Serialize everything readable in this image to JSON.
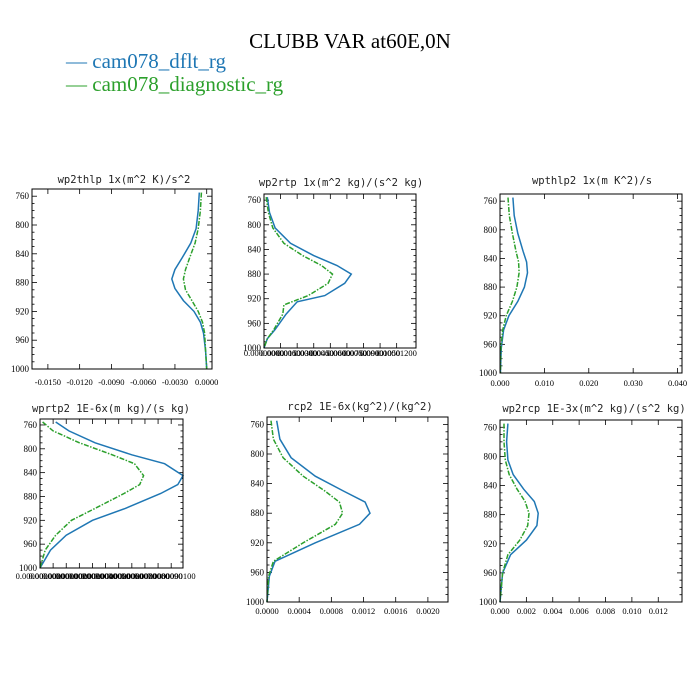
{
  "title": "CLUBB VAR at60E,0N",
  "legend": [
    {
      "label": "— cam078_dflt_rg",
      "color": "#1f77b4"
    },
    {
      "label": "— cam078_diagnostic_rg",
      "color": "#2ca02c"
    }
  ],
  "chart_data": [
    {
      "type": "line",
      "title": "wp2thlp   1x(m^2 K)/s^2",
      "ylim": [
        1000,
        750
      ],
      "y_ticks": [
        760,
        800,
        840,
        880,
        920,
        960,
        1000
      ],
      "y_tick_labels": [
        "760",
        "800",
        "840",
        "880",
        "920",
        "960",
        "1000"
      ],
      "xlim": [
        -0.0165,
        0.0005
      ],
      "x_ticks": [
        -0.015,
        -0.012,
        -0.009,
        -0.006,
        -0.003,
        0.0
      ],
      "x_tick_labels": [
        "-0.0150",
        "-0.0120",
        "-0.0090",
        "-0.0060",
        "-0.0030",
        "0.0000"
      ],
      "series": [
        {
          "name": "cam078_dflt_rg",
          "color": "#1f77b4",
          "dashed": false,
          "x": [
            -0.0007,
            -0.0008,
            -0.001,
            -0.0015,
            -0.0023,
            -0.003,
            -0.0033,
            -0.003,
            -0.0022,
            -0.0012,
            -0.0006,
            -0.0003,
            -0.0001,
            0.0
          ],
          "y": [
            755,
            780,
            805,
            825,
            845,
            862,
            875,
            888,
            905,
            920,
            935,
            950,
            975,
            1000
          ]
        },
        {
          "name": "cam078_diagnostic_rg",
          "color": "#2ca02c",
          "dashed": true,
          "x": [
            -0.0005,
            -0.0006,
            -0.0008,
            -0.0011,
            -0.0016,
            -0.002,
            -0.0022,
            -0.002,
            -0.0014,
            -0.0008,
            -0.0004,
            -0.0002,
            -0.0001,
            0.0
          ],
          "y": [
            755,
            780,
            805,
            825,
            845,
            862,
            875,
            890,
            905,
            920,
            935,
            950,
            975,
            1000
          ]
        }
      ]
    },
    {
      "type": "line",
      "title": "wp2rtp   1x(m^2 kg)/(s^2 kg)",
      "ylim": [
        1000,
        750
      ],
      "y_ticks": [
        760,
        800,
        840,
        880,
        920,
        960,
        1000
      ],
      "y_tick_labels": [
        "760",
        "800",
        "840",
        "880",
        "920",
        "960",
        "1000"
      ],
      "xlim": [
        0.0,
        1.375e-05
      ],
      "x_ticks": [
        0.0,
        1.5e-06,
        3e-06,
        4.5e-06,
        6e-06,
        7.5e-06,
        9e-06,
        1.05e-05,
        1.2e-05
      ],
      "x_tick_labels": [
        "0.00000000",
        "0.00000150",
        "0.00000300",
        "0.00000450",
        "0.00000600",
        "0.00000750",
        "0.00000900",
        "0.00001050",
        "0.00001200"
      ],
      "series": [
        {
          "name": "cam078_dflt_rg",
          "color": "#1f77b4",
          "dashed": false,
          "x": [
            3e-07,
            5e-07,
            1e-06,
            2.4e-06,
            4.5e-06,
            6.6e-06,
            7.9e-06,
            7.3e-06,
            5.5e-06,
            3e-06,
            2e-06,
            1e-06,
            3e-07,
            0.0
          ],
          "y": [
            755,
            780,
            805,
            830,
            850,
            866,
            880,
            895,
            915,
            925,
            945,
            970,
            985,
            1000
          ]
        },
        {
          "name": "cam078_diagnostic_rg",
          "color": "#2ca02c",
          "dashed": true,
          "x": [
            2e-07,
            4e-07,
            8e-07,
            1.8e-06,
            3.5e-06,
            5.2e-06,
            6.2e-06,
            5.8e-06,
            4e-06,
            1.8e-06,
            1.7e-06,
            9e-07,
            3e-07,
            0.0
          ],
          "y": [
            755,
            780,
            805,
            830,
            850,
            866,
            880,
            895,
            915,
            930,
            945,
            970,
            985,
            1000
          ]
        }
      ]
    },
    {
      "type": "line",
      "title": "wpthlp2   1x(m K^2)/s",
      "ylim": [
        1000,
        750
      ],
      "y_ticks": [
        760,
        800,
        840,
        880,
        920,
        960,
        1000
      ],
      "y_tick_labels": [
        "760",
        "800",
        "840",
        "880",
        "920",
        "960",
        "1000"
      ],
      "xlim": [
        0.0,
        0.041
      ],
      "x_ticks": [
        0.0,
        0.01,
        0.02,
        0.03,
        0.04
      ],
      "x_tick_labels": [
        "0.000",
        "0.010",
        "0.020",
        "0.030",
        "0.040"
      ],
      "series": [
        {
          "name": "cam078_dflt_rg",
          "color": "#1f77b4",
          "dashed": false,
          "x": [
            0.0029,
            0.0032,
            0.004,
            0.0052,
            0.006,
            0.0062,
            0.0055,
            0.004,
            0.002,
            0.0008,
            0.0003,
            0.0001
          ],
          "y": [
            755,
            780,
            805,
            830,
            845,
            860,
            880,
            900,
            920,
            940,
            965,
            1000
          ]
        },
        {
          "name": "cam078_diagnostic_rg",
          "color": "#2ca02c",
          "dashed": true,
          "x": [
            0.0018,
            0.0021,
            0.0028,
            0.0036,
            0.0042,
            0.0043,
            0.0038,
            0.0028,
            0.0014,
            0.0006,
            0.0002,
            0.0001
          ],
          "y": [
            755,
            780,
            805,
            830,
            845,
            860,
            880,
            900,
            920,
            940,
            965,
            1000
          ]
        }
      ]
    },
    {
      "type": "line",
      "title": "wprtp2   1E-6x(m kg)/(s kg)",
      "ylim": [
        1000,
        750
      ],
      "y_ticks": [
        760,
        800,
        840,
        880,
        920,
        960,
        1000
      ],
      "y_tick_labels": [
        "760",
        "800",
        "840",
        "880",
        "920",
        "960",
        "1000"
      ],
      "xlim": [
        0.0,
        1.09e-08
      ],
      "x_ticks": [
        0.0,
        1e-09,
        2e-09,
        3e-09,
        4e-09,
        5e-09,
        6e-09,
        7e-09,
        8e-09,
        9e-09,
        1e-08
      ],
      "x_tick_labels": [
        "0.0000000000",
        "0.0000000010",
        "0.0000000020",
        "0.0000000030",
        "0.0000000040",
        "0.0000000050",
        "0.0000000060",
        "0.0000000070",
        "0.0000000080",
        "0.0000000090",
        "0.0000000100"
      ],
      "series": [
        {
          "name": "cam078_dflt_rg",
          "color": "#1f77b4",
          "dashed": false,
          "x": [
            1.2e-09,
            2.2e-09,
            4.2e-09,
            7e-09,
            9.5e-09,
            1.09e-08,
            1.05e-08,
            9.2e-09,
            6.5e-09,
            4e-09,
            2e-09,
            8e-10,
            0.0
          ],
          "y": [
            755,
            770,
            790,
            810,
            825,
            845,
            860,
            875,
            900,
            920,
            945,
            970,
            1000
          ]
        },
        {
          "name": "cam078_diagnostic_rg",
          "color": "#2ca02c",
          "dashed": true,
          "x": [
            2e-10,
            1e-09,
            3e-09,
            5.5e-09,
            7.2e-09,
            7.9e-09,
            7.6e-09,
            6.4e-09,
            4.2e-09,
            2.4e-09,
            1.2e-09,
            4e-10,
            0.0
          ],
          "y": [
            755,
            770,
            790,
            810,
            825,
            845,
            860,
            875,
            900,
            920,
            945,
            970,
            1000
          ]
        }
      ]
    },
    {
      "type": "line",
      "title": "rcp2   1E-6x(kg^2)/(kg^2)",
      "ylim": [
        1000,
        750
      ],
      "y_ticks": [
        760,
        800,
        840,
        880,
        920,
        960,
        1000
      ],
      "y_tick_labels": [
        "760",
        "800",
        "840",
        "880",
        "920",
        "960",
        "1000"
      ],
      "xlim": [
        0.0,
        0.00225
      ],
      "x_ticks": [
        0.0,
        0.0004,
        0.0008,
        0.0012,
        0.0016,
        0.002
      ],
      "x_tick_labels": [
        "0.0000",
        "0.0004",
        "0.0008",
        "0.0012",
        "0.0016",
        "0.0020"
      ],
      "series": [
        {
          "name": "cam078_dflt_rg",
          "color": "#1f77b4",
          "dashed": false,
          "x": [
            0.00012,
            0.00016,
            0.0003,
            0.0006,
            0.00095,
            0.00122,
            0.00128,
            0.00115,
            0.0006,
            0.0001,
            3e-05,
            0.0
          ],
          "y": [
            755,
            780,
            805,
            830,
            850,
            865,
            880,
            895,
            920,
            945,
            965,
            1000
          ]
        },
        {
          "name": "cam078_diagnostic_rg",
          "color": "#2ca02c",
          "dashed": true,
          "x": [
            5e-05,
            8e-05,
            0.0002,
            0.00045,
            0.00072,
            0.0009,
            0.00094,
            0.00085,
            0.00045,
            8e-05,
            2e-05,
            0.0
          ],
          "y": [
            755,
            780,
            805,
            830,
            850,
            865,
            880,
            895,
            920,
            945,
            965,
            1000
          ]
        }
      ]
    },
    {
      "type": "line",
      "title": "wp2rcp   1E-3x(m^2 kg)/(s^2 kg)",
      "ylim": [
        1000,
        750
      ],
      "y_ticks": [
        760,
        800,
        840,
        880,
        920,
        960,
        1000
      ],
      "y_tick_labels": [
        "760",
        "800",
        "840",
        "880",
        "920",
        "960",
        "1000"
      ],
      "xlim": [
        0.0,
        0.0138
      ],
      "x_ticks": [
        0.0,
        0.002,
        0.004,
        0.006,
        0.008,
        0.01,
        0.012
      ],
      "x_tick_labels": [
        "0.000",
        "0.002",
        "0.004",
        "0.006",
        "0.008",
        "0.010",
        "0.012"
      ],
      "series": [
        {
          "name": "cam078_dflt_rg",
          "color": "#1f77b4",
          "dashed": false,
          "x": [
            0.0006,
            0.0005,
            0.0006,
            0.001,
            0.0018,
            0.0026,
            0.0029,
            0.0028,
            0.002,
            0.0008,
            0.0002,
            0.0
          ],
          "y": [
            755,
            780,
            805,
            825,
            845,
            862,
            878,
            895,
            915,
            935,
            960,
            1000
          ]
        },
        {
          "name": "cam078_diagnostic_rg",
          "color": "#2ca02c",
          "dashed": true,
          "x": [
            0.0003,
            0.0003,
            0.0004,
            0.0007,
            0.0013,
            0.0019,
            0.0022,
            0.0021,
            0.0015,
            0.0006,
            0.0002,
            0.0
          ],
          "y": [
            755,
            780,
            805,
            825,
            845,
            862,
            878,
            895,
            915,
            935,
            960,
            1000
          ]
        }
      ]
    }
  ]
}
